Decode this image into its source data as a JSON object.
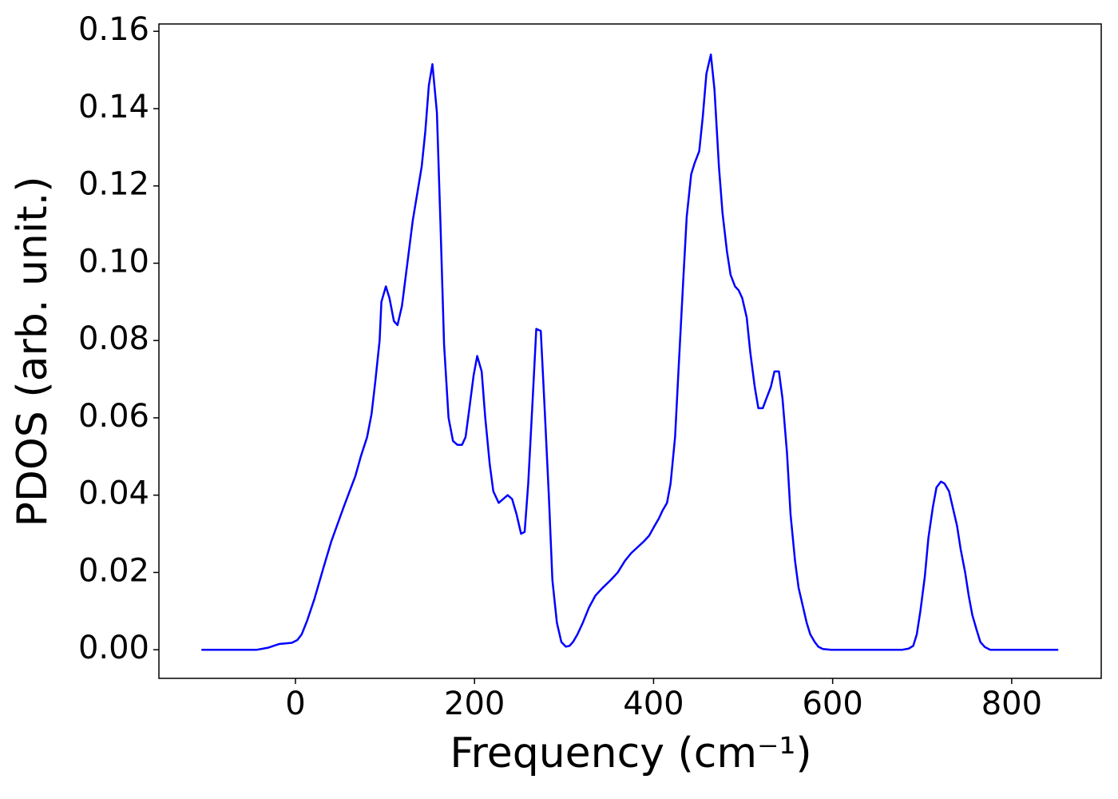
{
  "chart_data": {
    "type": "line",
    "xlabel": "Frequency (cm⁻¹)",
    "ylabel": "PDOS (arb. unit.)",
    "xlim": [
      -152.5,
      900
    ],
    "ylim": [
      -0.0074,
      0.1619
    ],
    "xticks": [
      0,
      200,
      400,
      600,
      800
    ],
    "yticks": [
      {
        "value": 0,
        "label": "0.00"
      },
      {
        "value": 0.02,
        "label": "0.02"
      },
      {
        "value": 0.04,
        "label": "0.04"
      },
      {
        "value": 0.06,
        "label": "0.06"
      },
      {
        "value": 0.08,
        "label": "0.08"
      },
      {
        "value": 0.1,
        "label": "0.10"
      },
      {
        "value": 0.12,
        "label": "0.12"
      },
      {
        "value": 0.14,
        "label": "0.14"
      },
      {
        "value": 0.16,
        "label": "0.16"
      }
    ],
    "grid": false,
    "x": [
      -105,
      -43,
      -31,
      -18,
      -4,
      2,
      7,
      13,
      21,
      31,
      40,
      54,
      67,
      73,
      80,
      85,
      89,
      94,
      96,
      101,
      105,
      110,
      114,
      119,
      125,
      131,
      136,
      141,
      145,
      149,
      153,
      158,
      162,
      166,
      171,
      176,
      181,
      186,
      190,
      194,
      199,
      203,
      208,
      212,
      217,
      221,
      227,
      232,
      237,
      242,
      247,
      252,
      256,
      260,
      265,
      269,
      274,
      278,
      283,
      287,
      292,
      297,
      302,
      306,
      310,
      315,
      321,
      328,
      335,
      343,
      352,
      360,
      368,
      375,
      382,
      389,
      395,
      401,
      406,
      410,
      415,
      419,
      424,
      428,
      433,
      437,
      442,
      446,
      451,
      455,
      459,
      464,
      468,
      473,
      477,
      482,
      486,
      491,
      495,
      499,
      504,
      508,
      513,
      517,
      522,
      526,
      531,
      535,
      540,
      544,
      549,
      553,
      558,
      562,
      567,
      571,
      575,
      580,
      584,
      589,
      598,
      678,
      685,
      690,
      694,
      698,
      703,
      707,
      712,
      716,
      721,
      725,
      730,
      734,
      739,
      743,
      748,
      752,
      756,
      761,
      765,
      770,
      776,
      852
    ],
    "series": [
      {
        "color": "#0000ff",
        "values": [
          0,
          0,
          0.0005,
          0.0015,
          0.0018,
          0.0025,
          0.004,
          0.0075,
          0.013,
          0.021,
          0.028,
          0.037,
          0.045,
          0.05,
          0.055,
          0.061,
          0.069,
          0.08,
          0.09,
          0.094,
          0.091,
          0.085,
          0.084,
          0.089,
          0.1,
          0.111,
          0.118,
          0.125,
          0.134,
          0.146,
          0.1515,
          0.139,
          0.11,
          0.079,
          0.06,
          0.054,
          0.053,
          0.053,
          0.055,
          0.062,
          0.071,
          0.076,
          0.072,
          0.06,
          0.048,
          0.041,
          0.038,
          0.039,
          0.04,
          0.039,
          0.035,
          0.03,
          0.0305,
          0.043,
          0.065,
          0.083,
          0.0825,
          0.064,
          0.04,
          0.018,
          0.007,
          0.002,
          0.0008,
          0.001,
          0.002,
          0.004,
          0.007,
          0.011,
          0.014,
          0.016,
          0.018,
          0.02,
          0.023,
          0.025,
          0.0265,
          0.028,
          0.0295,
          0.032,
          0.034,
          0.036,
          0.038,
          0.043,
          0.055,
          0.073,
          0.095,
          0.112,
          0.123,
          0.126,
          0.129,
          0.138,
          0.149,
          0.154,
          0.145,
          0.125,
          0.113,
          0.103,
          0.097,
          0.094,
          0.093,
          0.091,
          0.086,
          0.077,
          0.068,
          0.0625,
          0.0625,
          0.065,
          0.068,
          0.072,
          0.072,
          0.065,
          0.051,
          0.035,
          0.023,
          0.016,
          0.011,
          0.007,
          0.004,
          0.002,
          0.0008,
          0.0002,
          0,
          0,
          0.0003,
          0.001,
          0.004,
          0.01,
          0.019,
          0.029,
          0.037,
          0.042,
          0.0435,
          0.043,
          0.041,
          0.037,
          0.032,
          0.026,
          0.02,
          0.014,
          0.009,
          0.005,
          0.002,
          0.0007,
          0,
          0
        ]
      }
    ]
  }
}
